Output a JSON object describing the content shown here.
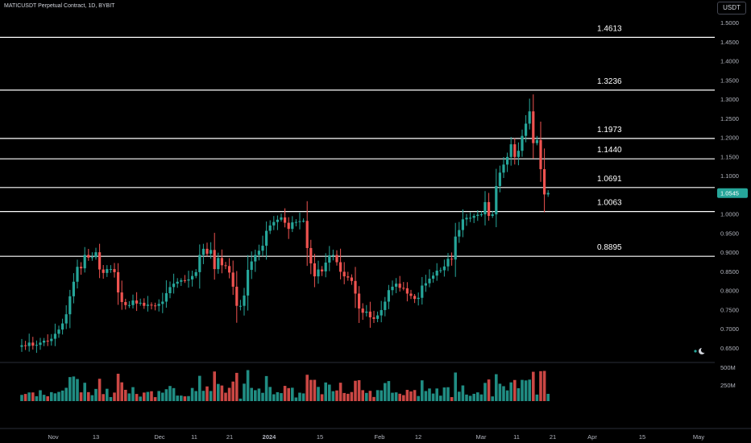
{
  "header": {
    "title": "MATICUSDT Perpetual Contract, 1D, BYBIT",
    "currency": "USDT"
  },
  "colors": {
    "background": "#000000",
    "up": "#26a69a",
    "down": "#ef5350",
    "level_line": "#ffffff",
    "axis_text": "#b2b5be"
  },
  "icons": {
    "bottom_right": "moon-icon"
  },
  "chart_data": [
    {
      "type": "candlestick",
      "title": "MATICUSDT Perpetual Contract, 1D, BYBIT",
      "ylim": [
        0.62,
        1.535
      ],
      "y_ticks": [
        "1.5000",
        "1.4500",
        "1.4000",
        "1.3500",
        "1.3000",
        "1.2500",
        "1.2000",
        "1.1500",
        "1.1000",
        "1.0500",
        "1.0000",
        "0.9500",
        "0.9000",
        "0.8500",
        "0.8000",
        "0.7500",
        "0.7000",
        "0.6500"
      ],
      "x_ticks": [
        "Nov",
        "13",
        "Dec",
        "11",
        "21",
        "2024",
        "15",
        "Feb",
        "12",
        "Mar",
        "11",
        "21",
        "Apr",
        "15",
        "May"
      ],
      "x_ticks_bold": [
        "2024"
      ],
      "last_price": "1.0545",
      "levels": [
        {
          "value": 1.4613,
          "label": "1.4613"
        },
        {
          "value": 1.3236,
          "label": "1.3236"
        },
        {
          "value": 1.1973,
          "label": "1.1973"
        },
        {
          "value": 1.144,
          "label": "1.1440"
        },
        {
          "value": 1.0691,
          "label": "1.0691"
        },
        {
          "value": 1.0063,
          "label": "1.0063"
        },
        {
          "value": 0.8895,
          "label": "0.8895"
        }
      ],
      "ohlc_close": [
        0.657,
        0.655,
        0.664,
        0.656,
        0.658,
        0.664,
        0.669,
        0.668,
        0.674,
        0.687,
        0.698,
        0.714,
        0.738,
        0.785,
        0.823,
        0.862,
        0.858,
        0.893,
        0.886,
        0.887,
        0.9,
        0.855,
        0.846,
        0.856,
        0.856,
        0.848,
        0.795,
        0.77,
        0.762,
        0.762,
        0.774,
        0.766,
        0.768,
        0.76,
        0.763,
        0.761,
        0.76,
        0.765,
        0.771,
        0.793,
        0.809,
        0.818,
        0.823,
        0.827,
        0.826,
        0.829,
        0.838,
        0.848,
        0.893,
        0.909,
        0.896,
        0.906,
        0.856,
        0.885,
        0.866,
        0.864,
        0.847,
        0.81,
        0.76,
        0.76,
        0.787,
        0.854,
        0.876,
        0.893,
        0.904,
        0.917,
        0.956,
        0.97,
        0.979,
        0.985,
        0.991,
        0.977,
        0.961,
        0.978,
        0.979,
        0.981,
        0.982,
        0.911,
        0.871,
        0.837,
        0.855,
        0.85,
        0.873,
        0.892,
        0.893,
        0.874,
        0.849,
        0.837,
        0.834,
        0.825,
        0.792,
        0.753,
        0.742,
        0.745,
        0.73,
        0.726,
        0.735,
        0.749,
        0.771,
        0.801,
        0.81,
        0.818,
        0.807,
        0.806,
        0.792,
        0.786,
        0.778,
        0.781,
        0.813,
        0.819,
        0.831,
        0.839,
        0.852,
        0.853,
        0.863,
        0.883,
        0.881,
        0.941,
        0.958,
        0.986,
        0.99,
        0.99,
        0.995,
        0.998,
        0.999,
        1.031,
        0.995,
        0.999,
        1.073,
        1.108,
        1.129,
        1.149,
        1.182,
        1.149,
        1.165,
        1.204,
        1.236,
        1.268,
        1.185,
        1.193,
        1.117,
        1.051,
        1.055
      ],
      "volume_scale_ticks": [
        "500M",
        "250M"
      ]
    }
  ]
}
